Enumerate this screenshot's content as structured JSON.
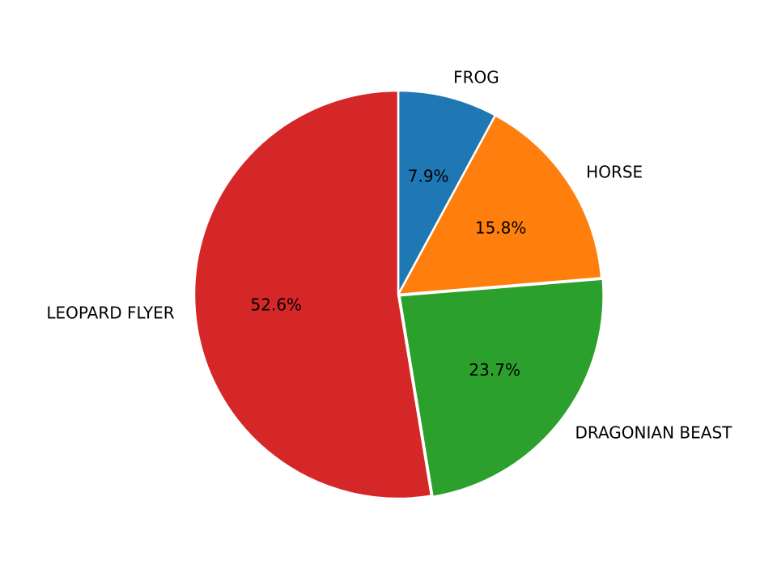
{
  "chart_data": {
    "type": "pie",
    "title": "",
    "start_angle_deg": 90,
    "direction": "clockwise",
    "slice_edge_color": "#ffffff",
    "slices": [
      {
        "label": "FROG",
        "value": 7.9,
        "pct_label": "7.9%",
        "color": "#1f77b4"
      },
      {
        "label": "HORSE",
        "value": 15.8,
        "pct_label": "15.8%",
        "color": "#ff7f0e"
      },
      {
        "label": "DRAGONIAN BEAST",
        "value": 23.7,
        "pct_label": "23.7%",
        "color": "#2ca02c"
      },
      {
        "label": "LEOPARD FLYER",
        "value": 52.6,
        "pct_label": "52.6%",
        "color": "#d62728"
      }
    ]
  }
}
